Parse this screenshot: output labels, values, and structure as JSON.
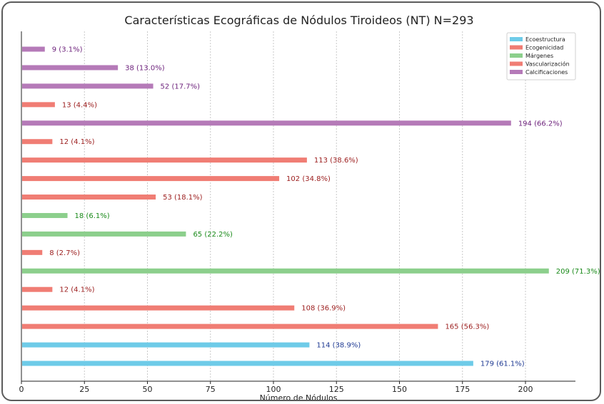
{
  "chart_data": {
    "type": "bar",
    "orientation": "horizontal",
    "title": "Características Ecográficas de Nódulos Tiroideos (NT) N=293",
    "xlabel": "Número de Nódulos",
    "ylabel": "",
    "xlim": [
      0,
      220
    ],
    "xticks": [
      0,
      25,
      50,
      75,
      100,
      125,
      150,
      175,
      200
    ],
    "grid": "vertical dotted",
    "legend_position": "top-right",
    "series": [
      {
        "name": "Ecoestructura",
        "color": "#6ecbe8",
        "label_color": "#1f3a93"
      },
      {
        "name": "Ecogenicidad",
        "color": "#f07d74",
        "label_color": "#9b1c1c"
      },
      {
        "name": "Márgenes",
        "color": "#8ccf8c",
        "label_color": "#1a8a1a"
      },
      {
        "name": "Vascularización",
        "color": "#f07d74",
        "label_color": "#9b1c1c"
      },
      {
        "name": "Calcificaciones",
        "color": "#b57ab8",
        "label_color": "#6b1f7a"
      }
    ],
    "bars": [
      {
        "series": 4,
        "value": 9,
        "label": "9 (3.1%)"
      },
      {
        "series": 4,
        "value": 38,
        "label": "38 (13.0%)"
      },
      {
        "series": 4,
        "value": 52,
        "label": "52 (17.7%)"
      },
      {
        "series": 3,
        "value": 13,
        "label": "13 (4.4%)"
      },
      {
        "series": 4,
        "value": 194,
        "label": "194 (66.2%)"
      },
      {
        "series": 3,
        "value": 12,
        "label": "12 (4.1%)"
      },
      {
        "series": 3,
        "value": 113,
        "label": "113 (38.6%)"
      },
      {
        "series": 3,
        "value": 102,
        "label": "102 (34.8%)"
      },
      {
        "series": 3,
        "value": 53,
        "label": "53 (18.1%)"
      },
      {
        "series": 2,
        "value": 18,
        "label": "18 (6.1%)"
      },
      {
        "series": 2,
        "value": 65,
        "label": "65 (22.2%)"
      },
      {
        "series": 1,
        "value": 8,
        "label": "8 (2.7%)"
      },
      {
        "series": 2,
        "value": 209,
        "label": "209 (71.3%)"
      },
      {
        "series": 1,
        "value": 12,
        "label": "12 (4.1%)"
      },
      {
        "series": 1,
        "value": 108,
        "label": "108 (36.9%)"
      },
      {
        "series": 1,
        "value": 165,
        "label": "165 (56.3%)"
      },
      {
        "series": 0,
        "value": 114,
        "label": "114 (38.9%)"
      },
      {
        "series": 0,
        "value": 179,
        "label": "179 (61.1%)"
      }
    ]
  }
}
